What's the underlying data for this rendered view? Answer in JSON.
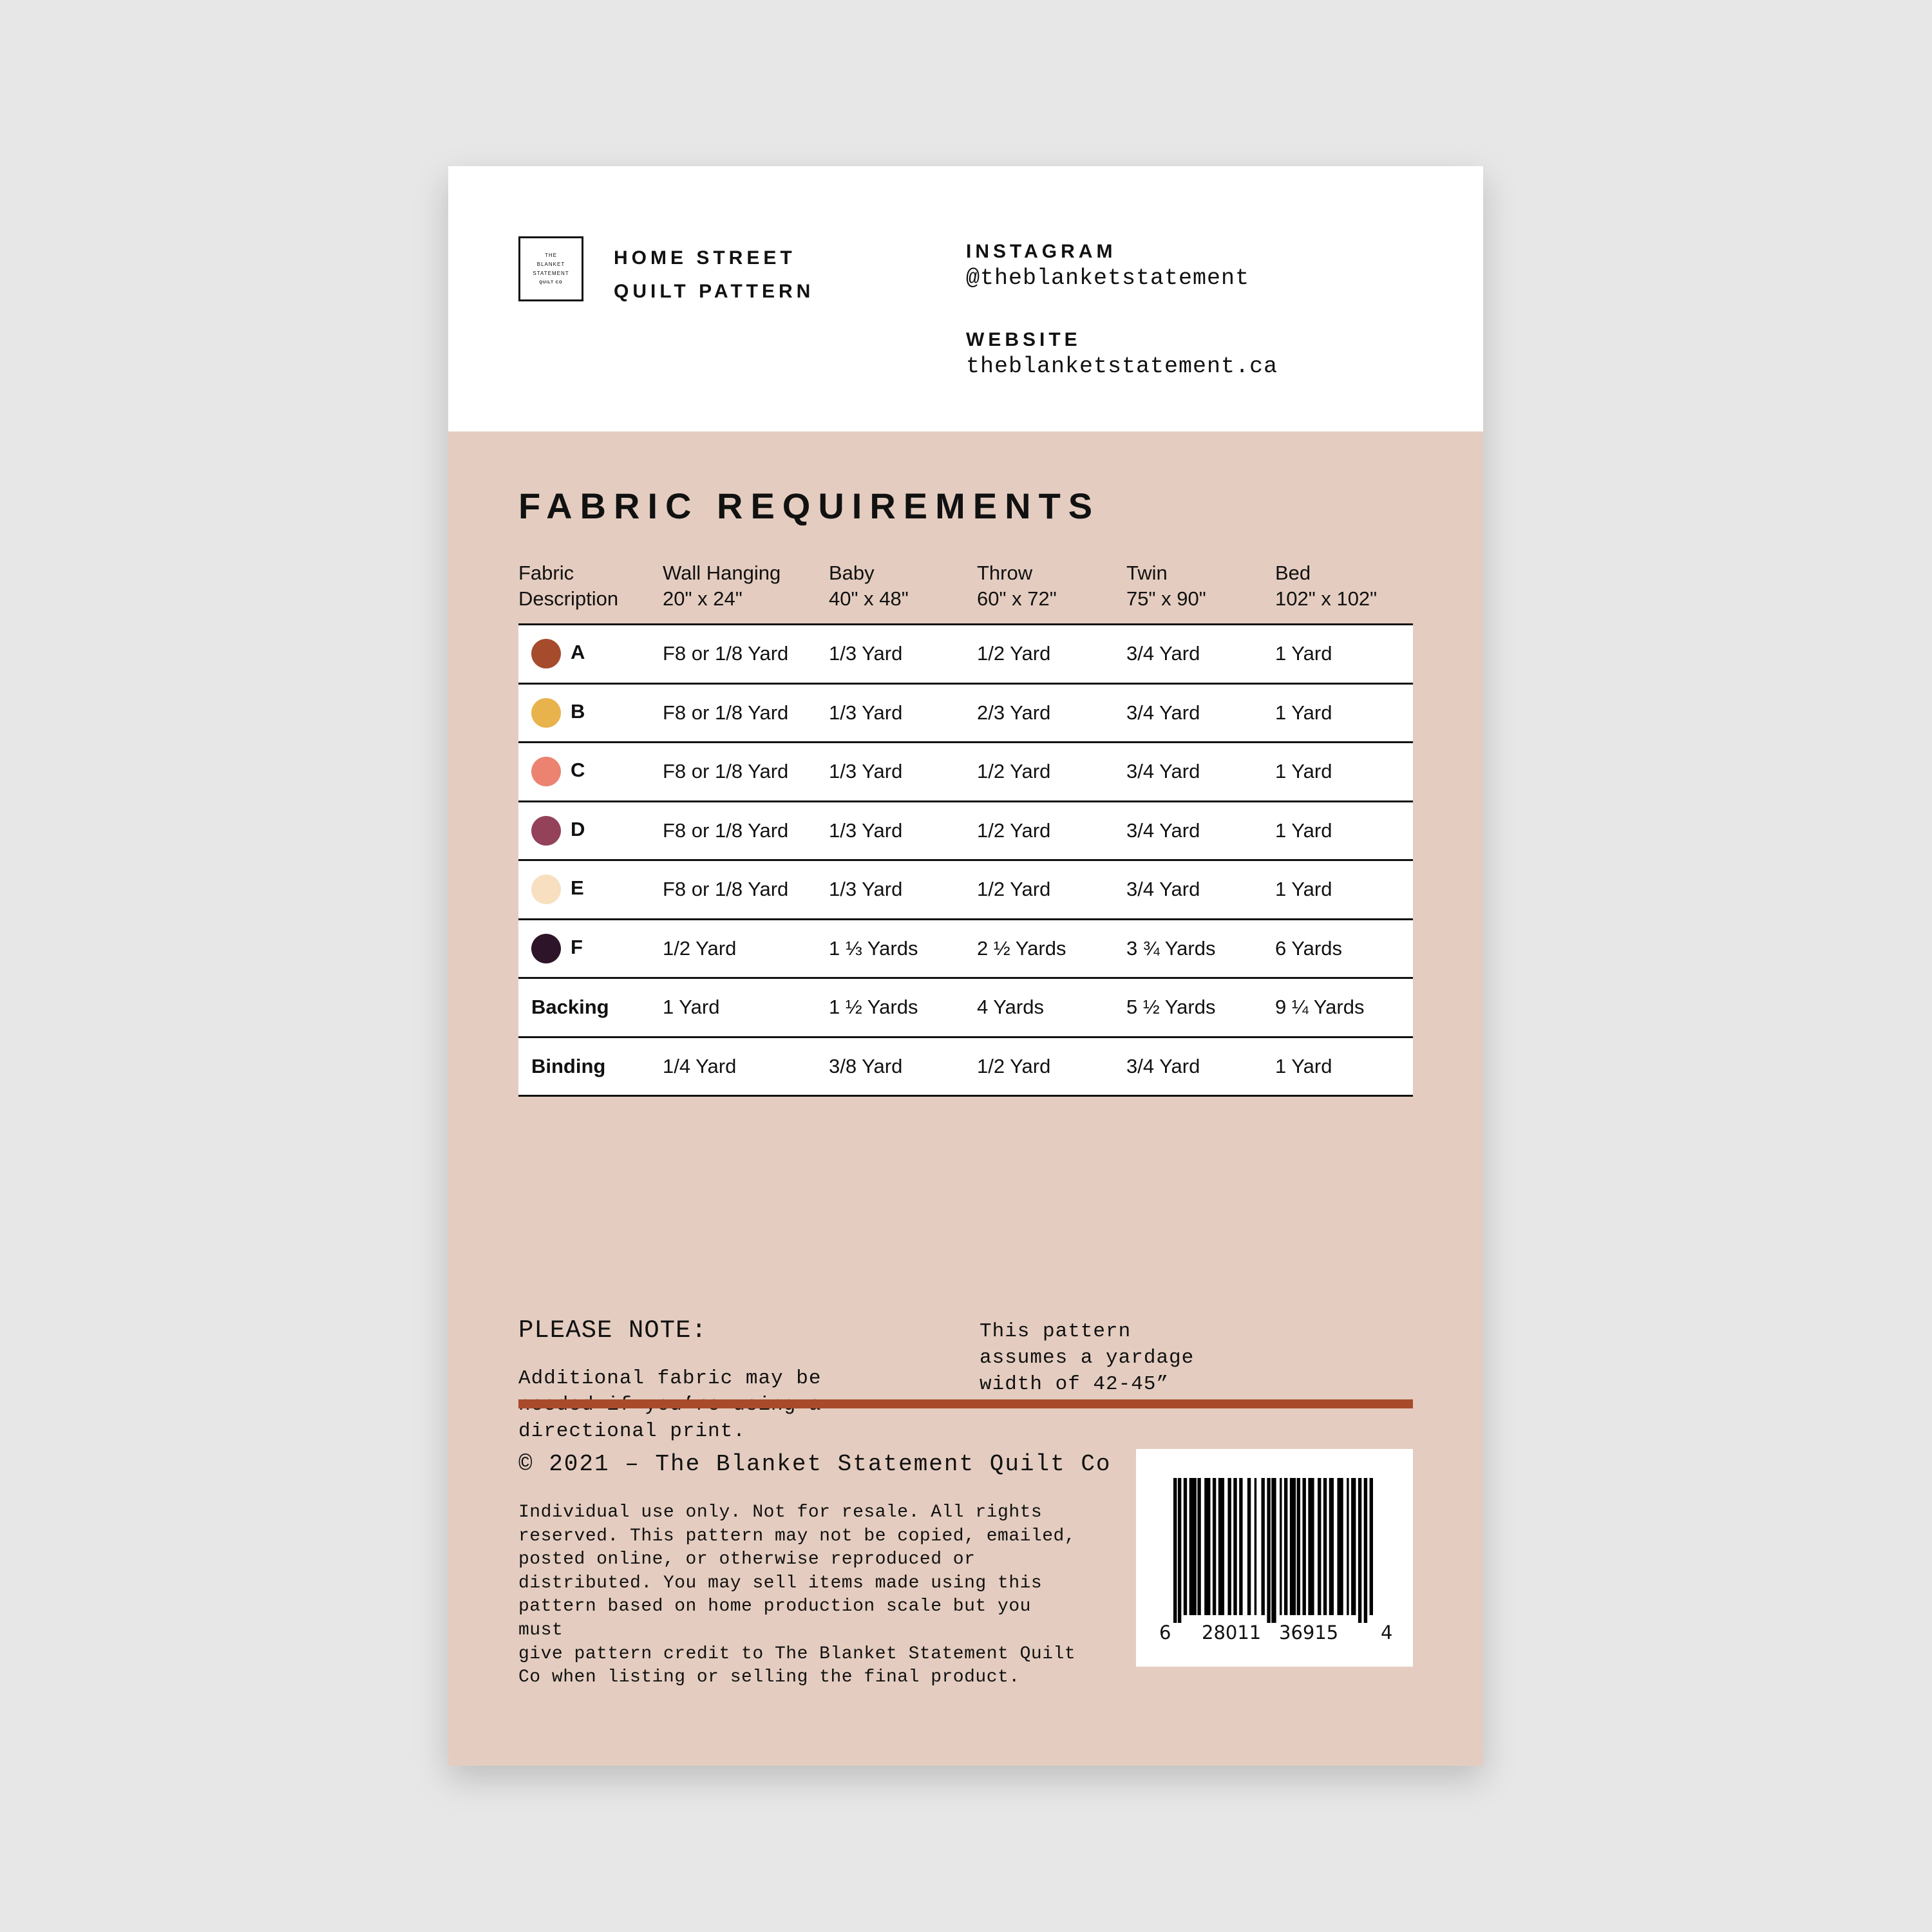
{
  "logo": {
    "lines": [
      "THE",
      "BLANKET",
      "STATEMENT",
      "QUILT CO"
    ]
  },
  "header": {
    "title_line1": "HOME STREET",
    "title_line2": "QUILT PATTERN",
    "instagram_label": "INSTAGRAM",
    "instagram_handle": "@theblanketstatement",
    "website_label": "WEBSITE",
    "website_url": "theblanketstatement.ca"
  },
  "fabric": {
    "heading": "FABRIC REQUIREMENTS",
    "columns": [
      {
        "name": "Fabric",
        "sub": "Description"
      },
      {
        "name": "Wall Hanging",
        "sub": "20\" x 24\""
      },
      {
        "name": "Baby",
        "sub": "40\" x 48\""
      },
      {
        "name": "Throw",
        "sub": "60\" x 72\""
      },
      {
        "name": "Twin",
        "sub": "75\" x 90\""
      },
      {
        "name": "Bed",
        "sub": "102\" x 102\""
      }
    ],
    "rows": [
      {
        "label": "A",
        "color": "#a64b2b",
        "values": [
          "F8 or 1/8 Yard",
          "1/3 Yard",
          "1/2 Yard",
          "3/4 Yard",
          "1 Yard"
        ]
      },
      {
        "label": "B",
        "color": "#e8b34d",
        "values": [
          "F8 or 1/8 Yard",
          "1/3 Yard",
          "2/3 Yard",
          "3/4 Yard",
          "1 Yard"
        ]
      },
      {
        "label": "C",
        "color": "#ec8371",
        "values": [
          "F8 or 1/8 Yard",
          "1/3 Yard",
          "1/2 Yard",
          "3/4 Yard",
          "1 Yard"
        ]
      },
      {
        "label": "D",
        "color": "#94415a",
        "values": [
          "F8 or 1/8 Yard",
          "1/3 Yard",
          "1/2 Yard",
          "3/4 Yard",
          "1 Yard"
        ]
      },
      {
        "label": "E",
        "color": "#f7dfc0",
        "values": [
          "F8 or 1/8 Yard",
          "1/3 Yard",
          "1/2 Yard",
          "3/4 Yard",
          "1 Yard"
        ]
      },
      {
        "label": "F",
        "color": "#2d1428",
        "values": [
          "1/2 Yard",
          "1 ⅓ Yards",
          "2 ½ Yards",
          "3 ¾ Yards",
          "6 Yards"
        ]
      },
      {
        "label": "Backing",
        "values": [
          "1 Yard",
          "1 ½ Yards",
          "4 Yards",
          "5 ½ Yards",
          "9 ¼ Yards"
        ]
      },
      {
        "label": "Binding",
        "values": [
          "1/4 Yard",
          "3/8 Yard",
          "1/2 Yard",
          "3/4 Yard",
          "1 Yard"
        ]
      }
    ]
  },
  "notes": {
    "heading": "PLEASE NOTE:",
    "left": "Additional fabric may be\nneeded if you’re using a\ndirectional print.",
    "right": "This pattern\nassumes a yardage\nwidth of 42-45”"
  },
  "footer": {
    "accent_color": "#a84b2a",
    "copyright": "© 2021 – The Blanket Statement Quilt Co",
    "legal": "Individual use only. Not for resale. All rights\nreserved. This pattern may not be copied, emailed,\nposted online, or otherwise reproduced or\ndistributed. You may sell items made using this\npattern based on home production scale but you must\ngive pattern credit to The Blanket Statement Quilt\nCo when listing or selling the final product.",
    "barcode_digits": [
      "6",
      "28011",
      "36915",
      "4"
    ]
  }
}
